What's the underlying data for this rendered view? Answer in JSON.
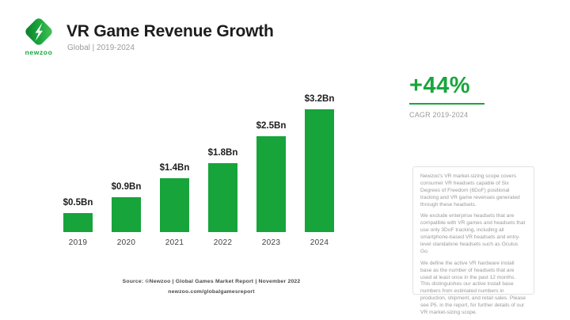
{
  "brand": {
    "logo_text": "newzoo",
    "logo_icon": "newzoo-diamond-icon"
  },
  "header": {
    "title": "VR Game Revenue Growth",
    "subtitle": "Global | 2019-2024"
  },
  "kpi": {
    "value": "+44%",
    "label": "CAGR 2019-2024"
  },
  "chart_data": {
    "type": "bar",
    "title": "VR Game Revenue Growth",
    "categories": [
      "2019",
      "2020",
      "2021",
      "2022",
      "2023",
      "2024"
    ],
    "values": [
      0.5,
      0.9,
      1.4,
      1.8,
      2.5,
      3.2
    ],
    "value_labels": [
      "$0.5Bn",
      "$0.9Bn",
      "$1.4Bn",
      "$1.8Bn",
      "$2.5Bn",
      "$3.2Bn"
    ],
    "xlabel": "",
    "ylabel": "",
    "ylim": [
      0,
      3.5
    ],
    "grid": false,
    "legend": false,
    "bar_color": "#17a43a"
  },
  "notes": {
    "paragraph1": "Newzoo's VR market-sizing scope covers consumer VR headsets capable of Six Degrees of Freedom (6DoF) positional tracking and VR game revenues generated through these headsets.",
    "paragraph2": "We exclude enterprise headsets that are compatible with VR games and headsets that use only 3DoF tracking, including all smartphone-based VR headsets and entry-level standalone headsets such as Oculus Go.",
    "paragraph3": "We define the active VR hardware install base as the number of headsets that are used at least once in the past 12 months. This distinguishes our active install base numbers from estimated numbers in production, shipment, and retail sales. Please see P5. in the report, for further details of our VR market-sizing scope."
  },
  "source": {
    "line1": "Source: ©Newzoo | Global Games Market Report | November 2022",
    "line2": "newzoo.com/globalgamesreport"
  },
  "colors": {
    "accent_green": "#18a63c",
    "bar_green": "#17a43a",
    "text_dark": "#1d1d1d",
    "text_gray": "#9b9b9b"
  }
}
